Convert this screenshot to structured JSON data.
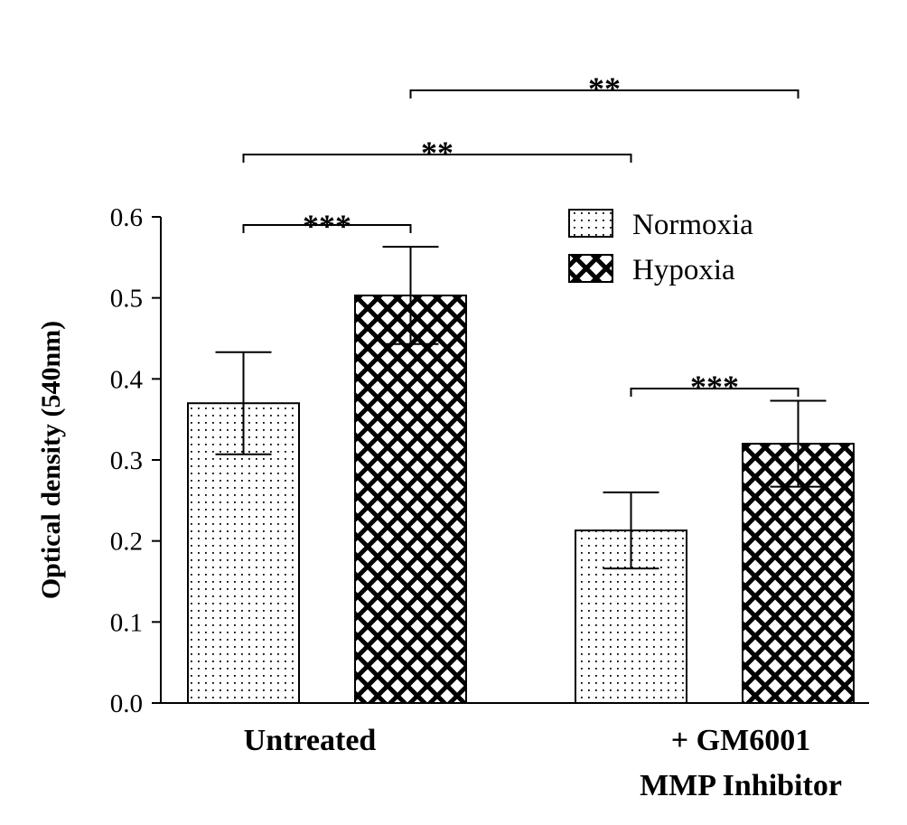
{
  "chart_data": {
    "type": "bar",
    "ylabel": "Optical density (540nm)",
    "xlabel": "",
    "ylim": [
      0,
      0.6
    ],
    "yticks": [
      0.0,
      0.1,
      0.2,
      0.3,
      0.4,
      0.5,
      0.6
    ],
    "ytick_labels": [
      "0.0",
      "0.1",
      "0.2",
      "0.3",
      "0.4",
      "0.5",
      "0.6"
    ],
    "categories": [
      {
        "line1": "Untreated",
        "line2": ""
      },
      {
        "line1": "+ GM6001",
        "line2": "MMP Inhibitor"
      }
    ],
    "series": [
      {
        "name": "Normoxia",
        "pattern": "dots",
        "values": [
          0.37,
          0.213
        ],
        "errors": [
          0.063,
          0.047
        ]
      },
      {
        "name": "Hypoxia",
        "pattern": "crosshatch",
        "values": [
          0.503,
          0.32
        ],
        "errors": [
          0.06,
          0.053
        ]
      }
    ],
    "legend": {
      "placement": "top-right"
    },
    "significance": [
      {
        "from": [
          0,
          0
        ],
        "to": [
          0,
          1
        ],
        "label": "***"
      },
      {
        "from": [
          0,
          0
        ],
        "to": [
          1,
          0
        ],
        "label": "**"
      },
      {
        "from": [
          0,
          1
        ],
        "to": [
          1,
          1
        ],
        "label": "**"
      },
      {
        "from": [
          1,
          0
        ],
        "to": [
          1,
          1
        ],
        "label": "***"
      }
    ],
    "grid": false,
    "colors": {
      "ink": "#000000",
      "background": "#ffffff"
    }
  }
}
